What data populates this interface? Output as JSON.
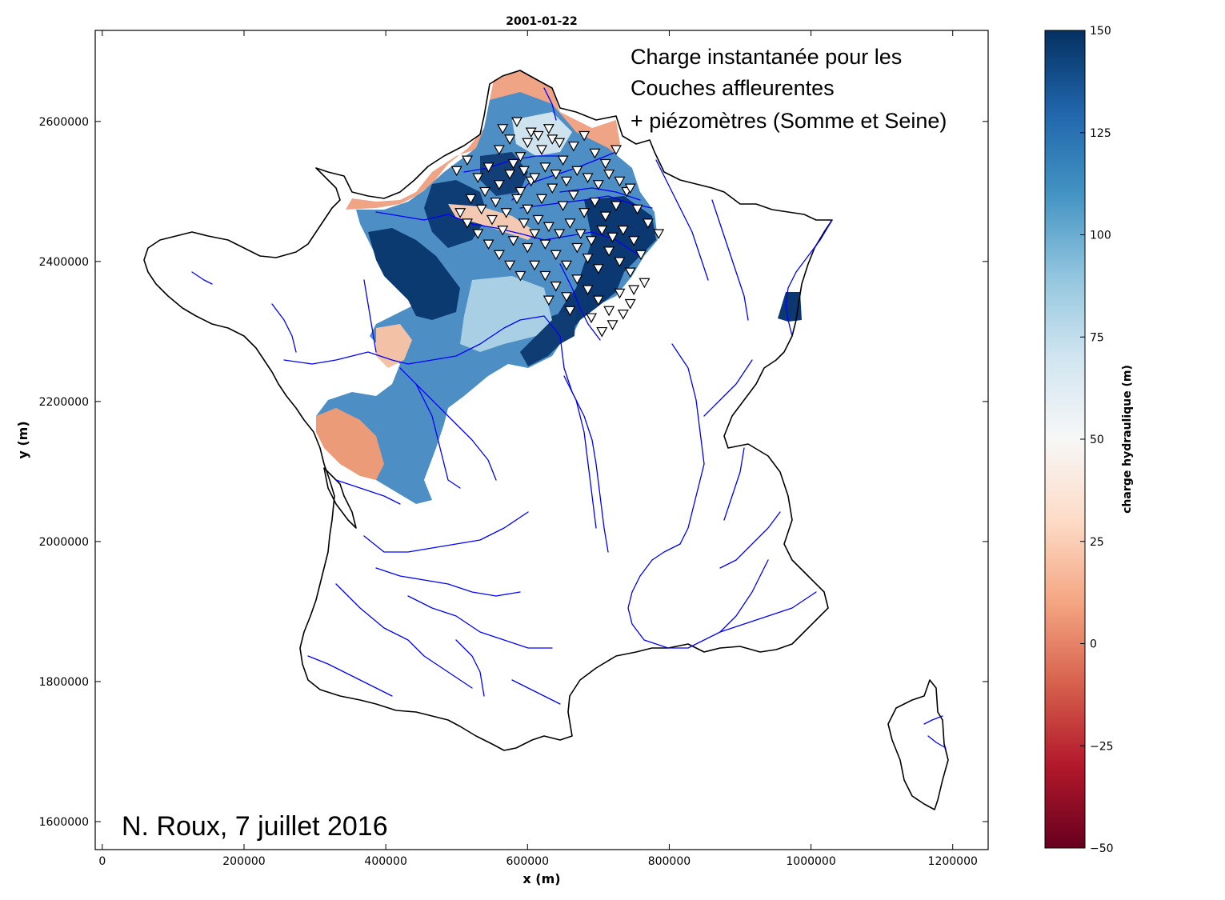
{
  "title": "2001-01-22",
  "annotation": {
    "line1": "Charge instantanée pour les",
    "line2": "Couches affleurentes",
    "line3": "+ piézomètres (Somme et Seine)"
  },
  "credit": "N. Roux, 7 juillet 2016",
  "chart_data": {
    "type": "heatmap",
    "xlabel": "x (m)",
    "ylabel": "y (m)",
    "xlim": [
      -10000,
      1250000
    ],
    "ylim": [
      1560000,
      2730000
    ],
    "x_ticks": [
      "0",
      "200000",
      "400000",
      "600000",
      "800000",
      "1000000",
      "1200000"
    ],
    "y_ticks": [
      "1600000",
      "1800000",
      "2000000",
      "2200000",
      "2400000",
      "2600000"
    ],
    "colorbar": {
      "label": "charge hydraulique (m)",
      "range": [
        -50,
        150
      ],
      "ticks": [
        "150",
        "125",
        "100",
        "75",
        "50",
        "25",
        "0",
        "−25",
        "−50"
      ],
      "colormap": [
        "#67001f",
        "#b2182b",
        "#d6604d",
        "#f4a582",
        "#fddbc7",
        "#f7f7f7",
        "#d1e5f0",
        "#92c5de",
        "#4393c3",
        "#2166ac",
        "#053061"
      ]
    },
    "layers": {
      "outline_color": "#000000",
      "rivers_color": "#0000ff",
      "piezometer_marker": "white inverted triangle with black edge",
      "heatmap_regions": [
        "Somme basin",
        "Seine basin",
        "Loire basin (partial)",
        "Rhine (Alsace)"
      ]
    },
    "piezometers": [
      [
        560000,
        2560000
      ],
      [
        575000,
        2575000
      ],
      [
        590000,
        2550000
      ],
      [
        605000,
        2585000
      ],
      [
        620000,
        2560000
      ],
      [
        635000,
        2575000
      ],
      [
        650000,
        2545000
      ],
      [
        665000,
        2565000
      ],
      [
        680000,
        2580000
      ],
      [
        695000,
        2555000
      ],
      [
        710000,
        2540000
      ],
      [
        725000,
        2560000
      ],
      [
        500000,
        2530000
      ],
      [
        515000,
        2545000
      ],
      [
        530000,
        2520000
      ],
      [
        545000,
        2535000
      ],
      [
        560000,
        2510000
      ],
      [
        575000,
        2525000
      ],
      [
        590000,
        2500000
      ],
      [
        605000,
        2515000
      ],
      [
        620000,
        2490000
      ],
      [
        635000,
        2505000
      ],
      [
        650000,
        2480000
      ],
      [
        665000,
        2495000
      ],
      [
        680000,
        2470000
      ],
      [
        695000,
        2485000
      ],
      [
        710000,
        2465000
      ],
      [
        725000,
        2480000
      ],
      [
        740000,
        2500000
      ],
      [
        755000,
        2475000
      ],
      [
        770000,
        2455000
      ],
      [
        785000,
        2440000
      ],
      [
        520000,
        2490000
      ],
      [
        535000,
        2475000
      ],
      [
        550000,
        2460000
      ],
      [
        565000,
        2445000
      ],
      [
        580000,
        2430000
      ],
      [
        595000,
        2455000
      ],
      [
        610000,
        2440000
      ],
      [
        625000,
        2425000
      ],
      [
        640000,
        2410000
      ],
      [
        655000,
        2395000
      ],
      [
        670000,
        2420000
      ],
      [
        685000,
        2405000
      ],
      [
        700000,
        2390000
      ],
      [
        715000,
        2415000
      ],
      [
        730000,
        2400000
      ],
      [
        745000,
        2385000
      ],
      [
        760000,
        2410000
      ],
      [
        610000,
        2395000
      ],
      [
        625000,
        2380000
      ],
      [
        640000,
        2365000
      ],
      [
        655000,
        2350000
      ],
      [
        670000,
        2375000
      ],
      [
        685000,
        2360000
      ],
      [
        700000,
        2345000
      ],
      [
        715000,
        2330000
      ],
      [
        730000,
        2355000
      ],
      [
        745000,
        2340000
      ],
      [
        600000,
        2420000
      ],
      [
        560000,
        2410000
      ],
      [
        545000,
        2425000
      ],
      [
        575000,
        2395000
      ],
      [
        590000,
        2380000
      ],
      [
        630000,
        2345000
      ],
      [
        660000,
        2330000
      ],
      [
        690000,
        2320000
      ],
      [
        720000,
        2310000
      ],
      [
        705000,
        2300000
      ],
      [
        735000,
        2325000
      ],
      [
        750000,
        2360000
      ],
      [
        765000,
        2370000
      ],
      [
        530000,
        2440000
      ],
      [
        515000,
        2455000
      ],
      [
        505000,
        2470000
      ],
      [
        540000,
        2500000
      ],
      [
        555000,
        2485000
      ],
      [
        570000,
        2470000
      ],
      [
        585000,
        2490000
      ],
      [
        600000,
        2475000
      ],
      [
        615000,
        2460000
      ],
      [
        630000,
        2450000
      ],
      [
        645000,
        2440000
      ],
      [
        660000,
        2455000
      ],
      [
        675000,
        2440000
      ],
      [
        690000,
        2430000
      ],
      [
        705000,
        2445000
      ],
      [
        720000,
        2435000
      ],
      [
        735000,
        2445000
      ],
      [
        750000,
        2430000
      ],
      [
        580000,
        2540000
      ],
      [
        595000,
        2530000
      ],
      [
        610000,
        2520000
      ],
      [
        625000,
        2535000
      ],
      [
        640000,
        2525000
      ],
      [
        655000,
        2515000
      ],
      [
        670000,
        2530000
      ],
      [
        685000,
        2520000
      ],
      [
        700000,
        2510000
      ],
      [
        715000,
        2525000
      ],
      [
        730000,
        2515000
      ],
      [
        745000,
        2505000
      ],
      [
        565000,
        2590000
      ],
      [
        585000,
        2600000
      ],
      [
        600000,
        2570000
      ],
      [
        615000,
        2580000
      ],
      [
        630000,
        2590000
      ],
      [
        645000,
        2570000
      ]
    ]
  }
}
